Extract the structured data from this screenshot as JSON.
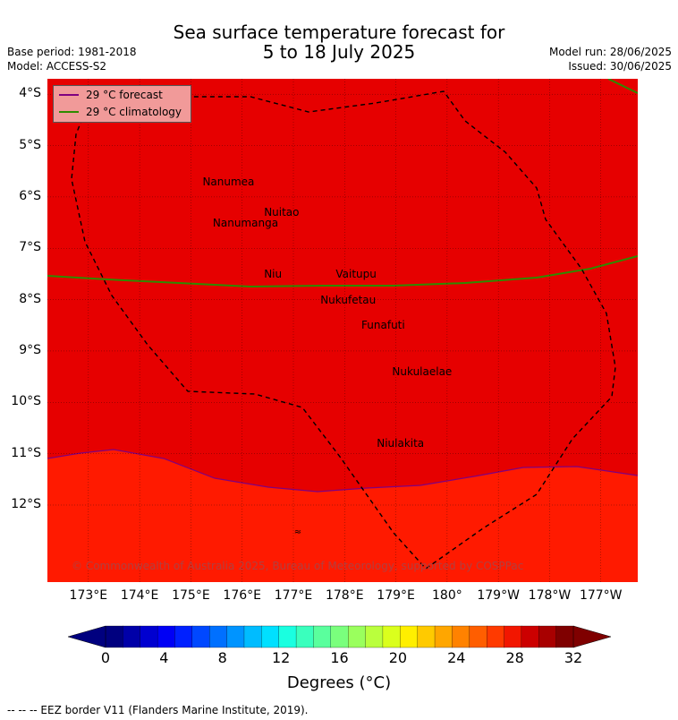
{
  "header": {
    "title_line1": "Sea surface temperature forecast for",
    "title_line2": "5 to 18 July 2025",
    "base_period": "Base period: 1981-2018",
    "model": "Model: ACCESS-S2",
    "model_run": "Model run: 28/06/2025",
    "issued": "Issued: 30/06/2025"
  },
  "map": {
    "lat_labels": [
      "4°S",
      "5°S",
      "6°S",
      "7°S",
      "8°S",
      "9°S",
      "10°S",
      "11°S",
      "12°S"
    ],
    "lon_labels": [
      "173°E",
      "174°E",
      "175°E",
      "176°E",
      "177°E",
      "178°E",
      "179°E",
      "180°",
      "179°W",
      "178°W",
      "177°W"
    ],
    "places": [
      {
        "name": "Nanumea",
        "lon": 176.1,
        "lat": -5.7
      },
      {
        "name": "Nuitao",
        "lon": 177.3,
        "lat": -6.3
      },
      {
        "name": "Nanumanga",
        "lon": 176.3,
        "lat": -6.5
      },
      {
        "name": "Niu",
        "lon": 177.3,
        "lat": -7.5
      },
      {
        "name": "Vaitupu",
        "lon": 178.7,
        "lat": -7.5
      },
      {
        "name": "Nukufetau",
        "lon": 178.4,
        "lat": -8.0
      },
      {
        "name": "Funafuti",
        "lon": 179.2,
        "lat": -8.5
      },
      {
        "name": "Nukulaelae",
        "lon": 179.8,
        "lat": -9.4
      },
      {
        "name": "Niulakita",
        "lon": 179.5,
        "lat": -10.8
      }
    ],
    "legend": [
      {
        "label": "29 °C  forecast",
        "color": "#800080"
      },
      {
        "label": "29 °C  climatology",
        "color": "#2e8b00"
      }
    ],
    "colors": {
      "warm_fill": "#e60000",
      "cooler_fill": "#ff1a00",
      "eez_border": "#000000"
    },
    "copyright": "© Commonwealth of Australia 2025, Bureau of Meteorology, supported by COSPPac"
  },
  "colorbar": {
    "ticks": [
      "0",
      "4",
      "8",
      "12",
      "16",
      "20",
      "24",
      "28",
      "32"
    ],
    "unit": "Degrees (°C)",
    "colors": [
      "#00007f",
      "#0000a8",
      "#0000d0",
      "#0000f5",
      "#0020ff",
      "#0048ff",
      "#0070ff",
      "#0094ff",
      "#00bcff",
      "#00e0ff",
      "#1affe0",
      "#3affbd",
      "#5aff9d",
      "#7aff7d",
      "#9aff5d",
      "#baff3d",
      "#daff1d",
      "#ffef00",
      "#ffca00",
      "#ffa600",
      "#ff8200",
      "#ff5e00",
      "#ff3a00",
      "#f21600",
      "#cc0000",
      "#a80000",
      "#7f0000"
    ]
  },
  "footnote": "--  --  -- EEZ border V11 (Flanders Marine Institute, 2019)."
}
